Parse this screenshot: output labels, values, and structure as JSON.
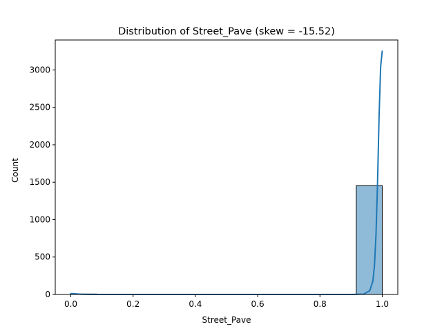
{
  "chart_data": {
    "type": "histogram",
    "title": "Distribution of Street_Pave (skew = -15.52)",
    "xlabel": "Street_Pave",
    "ylabel": "Count",
    "xlim": [
      -0.05,
      1.05
    ],
    "ylim": [
      0,
      3400
    ],
    "xticks": [
      "0.0",
      "0.2",
      "0.4",
      "0.6",
      "0.8",
      "1.0"
    ],
    "xtick_values": [
      0.0,
      0.2,
      0.4,
      0.6,
      0.8,
      1.0
    ],
    "yticks": [
      "0",
      "500",
      "1000",
      "1500",
      "2000",
      "2500",
      "3000"
    ],
    "ytick_values": [
      0,
      500,
      1000,
      1500,
      2000,
      2500,
      3000
    ],
    "bins": [
      {
        "x0": 0.0,
        "x1": 0.0833,
        "count": 6
      },
      {
        "x0": 0.9167,
        "x1": 1.0,
        "count": 1454
      }
    ],
    "kde": {
      "x": [
        0.0,
        0.01,
        0.02,
        0.03,
        0.05,
        0.08,
        0.1,
        0.5,
        0.9,
        0.94,
        0.96,
        0.97,
        0.975,
        0.98,
        0.985,
        0.99,
        0.995,
        1.0
      ],
      "y": [
        12,
        10,
        7,
        4,
        1,
        0,
        0,
        0,
        0,
        5,
        50,
        180,
        380,
        800,
        1500,
        2400,
        3050,
        3250
      ]
    },
    "bar_color": "#8fbbd9",
    "bar_edge_color": "#000000",
    "kde_color": "#1f77b4",
    "grid": false
  }
}
